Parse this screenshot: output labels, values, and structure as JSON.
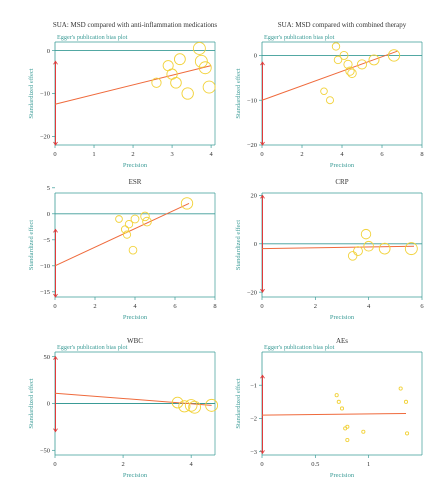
{
  "chart_data": [
    {
      "type": "scatter",
      "title": "SUA: MSD compared with anti-inflammation medications",
      "subtitle": "Egger's publication bias plot",
      "xlabel": "Precision",
      "ylabel": "Standardized effect",
      "xlim": [
        0,
        4.1
      ],
      "ylim": [
        -22,
        2
      ],
      "xticks": [
        0,
        1,
        2,
        3,
        4
      ],
      "yticks": [
        0,
        -10,
        -20
      ],
      "grid": false,
      "ci_interval": [
        -22,
        -2.5
      ],
      "regression": {
        "x": [
          0,
          4
        ],
        "y": [
          -12.5,
          -3.5
        ]
      },
      "points": {
        "x": [
          2.6,
          2.9,
          3.0,
          3.1,
          3.2,
          3.4,
          3.7,
          3.75,
          3.85,
          3.95
        ],
        "y": [
          -7.5,
          -3.5,
          -5.5,
          -7.5,
          -2,
          -10,
          0.5,
          -2.5,
          -4,
          -8.5
        ]
      }
    },
    {
      "type": "scatter",
      "title": "SUA: MSD compared with combined therapy",
      "subtitle": "Egger's publication bias plot",
      "xlabel": "Precision",
      "ylabel": "Standardized effect",
      "xlim": [
        0,
        8
      ],
      "ylim": [
        -20,
        3
      ],
      "xticks": [
        0,
        2,
        4,
        6,
        8
      ],
      "yticks": [
        0,
        -10,
        -20
      ],
      "grid": false,
      "ci_interval": [
        -20,
        -1.5
      ],
      "regression": {
        "x": [
          0,
          6.8
        ],
        "y": [
          -10,
          1
        ]
      },
      "points": {
        "x": [
          3.1,
          3.4,
          3.7,
          3.8,
          4.1,
          4.3,
          4.4,
          4.5,
          5.0,
          5.6,
          6.6
        ],
        "y": [
          -8,
          -10,
          2,
          -1,
          0,
          -2,
          -3.5,
          -4,
          -2,
          -1,
          0
        ]
      }
    },
    {
      "type": "scatter",
      "title": "ESR",
      "subtitle": "",
      "xlabel": "Precision",
      "ylabel": "Standardized effect",
      "xlim": [
        0,
        8
      ],
      "ylim": [
        -16,
        4
      ],
      "xticks": [
        0,
        2,
        4,
        6,
        8
      ],
      "yticks": [
        5,
        0,
        -5,
        -10,
        -15
      ],
      "grid": false,
      "ci_interval": [
        -16,
        -3
      ],
      "regression": {
        "x": [
          0,
          6.7
        ],
        "y": [
          -10,
          2
        ]
      },
      "points": {
        "x": [
          3.2,
          3.5,
          3.6,
          3.7,
          3.9,
          4.0,
          4.5,
          4.6,
          6.6
        ],
        "y": [
          -1,
          -3,
          -4,
          -2,
          -7,
          -1,
          -0.5,
          -1.5,
          2
        ]
      }
    },
    {
      "type": "scatter",
      "title": "CRP",
      "subtitle": "",
      "xlabel": "Precision",
      "ylabel": "Standardized effect",
      "xlim": [
        0,
        6
      ],
      "ylim": [
        -22,
        21
      ],
      "xticks": [
        0,
        2,
        4,
        6
      ],
      "yticks": [
        20,
        0,
        -20
      ],
      "grid": false,
      "ci_interval": [
        -20,
        20
      ],
      "regression": {
        "x": [
          0,
          5.7
        ],
        "y": [
          -2,
          -1
        ]
      },
      "points": {
        "x": [
          3.4,
          3.6,
          3.9,
          4.0,
          4.6,
          5.6
        ],
        "y": [
          -5,
          -3,
          4,
          -1,
          -2,
          -2
        ]
      }
    },
    {
      "type": "scatter",
      "title": "WBC",
      "subtitle": "Egger's publication bias plot",
      "xlabel": "Precision",
      "ylabel": "Standardized effect",
      "xlim": [
        0,
        4.7
      ],
      "ylim": [
        -55,
        55
      ],
      "xticks": [
        0,
        2,
        4
      ],
      "yticks": [
        50,
        0,
        -50
      ],
      "grid": false,
      "ci_interval": [
        -30,
        50
      ],
      "regression": {
        "x": [
          0,
          4.6
        ],
        "y": [
          11,
          -2
        ]
      },
      "points": {
        "x": [
          3.6,
          3.8,
          4.0,
          4.1,
          4.6
        ],
        "y": [
          1,
          -3,
          -2,
          -4,
          -2
        ]
      }
    },
    {
      "type": "scatter",
      "title": "AEs",
      "subtitle": "Egger's publication bias plot",
      "xlabel": "Precision",
      "ylabel": "Standardized effect",
      "xlim": [
        0,
        1.5
      ],
      "ylim": [
        -3.1,
        0
      ],
      "xticks": [
        0,
        0.5,
        1
      ],
      "yticks": [
        -1,
        -2,
        -3
      ],
      "grid": false,
      "ci_interval": [
        -3.05,
        -0.7
      ],
      "regression": {
        "x": [
          0,
          1.35
        ],
        "y": [
          -1.9,
          -1.85
        ]
      },
      "points": {
        "x": [
          0.7,
          0.72,
          0.75,
          0.78,
          0.8,
          0.8,
          0.95,
          1.3,
          1.35,
          1.36
        ],
        "y": [
          -1.3,
          -1.5,
          -1.7,
          -2.3,
          -2.25,
          -2.65,
          -2.4,
          -1.1,
          -1.5,
          -2.45
        ]
      }
    }
  ],
  "colors": {
    "axis": "#3a9b96",
    "ci_line": "#e03b3b",
    "regression": "#ef6a3c",
    "points": "#f2d23a",
    "text": "#333333"
  }
}
